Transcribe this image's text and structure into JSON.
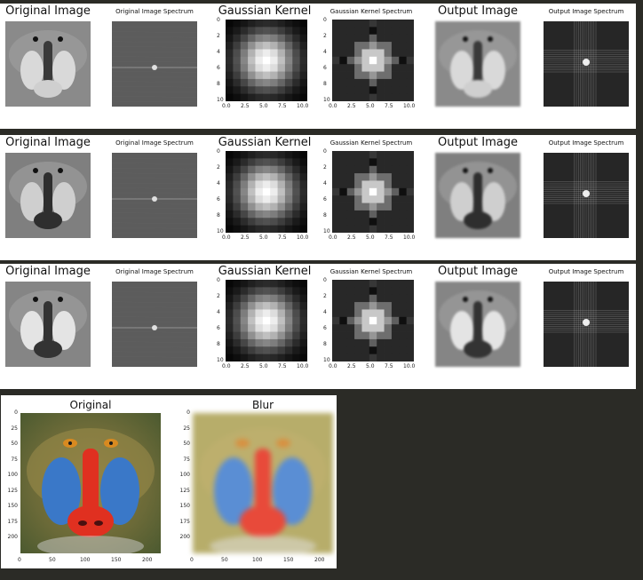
{
  "rows": [
    {
      "titles": [
        "Original Image",
        "Original Image Spectrum",
        "Gaussian Kernel",
        "Gaussian Kernel Spectrum",
        "Output Image",
        "Output Image Spectrum"
      ]
    },
    {
      "titles": [
        "Original Image",
        "Original Image Spectrum",
        "Gaussian Kernel",
        "Gaussian Kernel Spectrum",
        "Output Image",
        "Output Image Spectrum"
      ]
    },
    {
      "titles": [
        "Original Image",
        "Original Image Spectrum",
        "Gaussian Kernel",
        "Gaussian Kernel Spectrum",
        "Output Image",
        "Output Image Spectrum"
      ]
    }
  ],
  "kernel_axis": {
    "y_ticks": [
      "0",
      "2",
      "4",
      "6",
      "8",
      "10"
    ],
    "x_ticks": [
      "0.0",
      "2.5",
      "5.0",
      "7.5",
      "10.0"
    ]
  },
  "kernel_spectrum_axis": {
    "y_ticks": [
      "0",
      "2",
      "4",
      "6",
      "8",
      "10"
    ],
    "x_ticks": [
      "0.0",
      "2.5",
      "5.0",
      "7.5",
      "10.0"
    ]
  },
  "bottom": {
    "left_title": "Original",
    "right_title": "Blur",
    "y_ticks": [
      "0",
      "25",
      "50",
      "75",
      "100",
      "125",
      "150",
      "175",
      "200"
    ],
    "x_ticks": [
      "0",
      "50",
      "100",
      "150",
      "200"
    ]
  }
}
